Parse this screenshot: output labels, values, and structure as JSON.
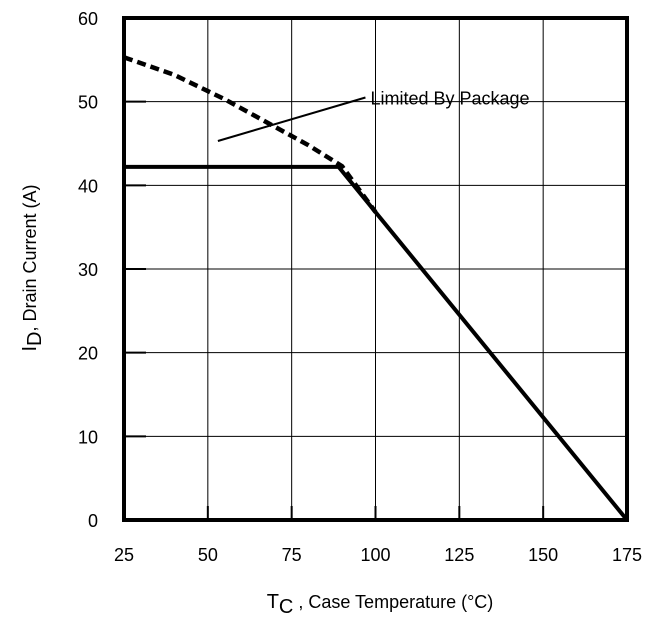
{
  "chart_data": {
    "type": "line",
    "xlim": [
      25,
      175
    ],
    "ylim": [
      0,
      60
    ],
    "x_ticks": [
      25,
      50,
      75,
      100,
      125,
      150,
      175
    ],
    "y_ticks": [
      0,
      10,
      20,
      30,
      40,
      50,
      60
    ],
    "grid": true,
    "xlabel": {
      "main": "T",
      "sub": "C",
      "rest": " , Case Temperature (°C)"
    },
    "ylabel": {
      "main": "I",
      "sub": "D",
      "rest": ",  Drain Current (A)"
    },
    "series": [
      {
        "style": "solid",
        "x": [
          25,
          89,
          175
        ],
        "y": [
          42.2,
          42.2,
          0
        ]
      },
      {
        "style": "dashed",
        "x": [
          25,
          40,
          55,
          70,
          80,
          90,
          100
        ],
        "y": [
          55.3,
          53.2,
          50.3,
          47.0,
          44.8,
          42.3,
          36.8
        ]
      }
    ],
    "annotations": [
      {
        "text": "Limited By Package",
        "pointer_from": [
          53,
          45.3
        ],
        "pointer_to": [
          97,
          50.5
        ],
        "text_x": 98.5,
        "text_y": 50.5
      }
    ]
  },
  "colors": {
    "line": "#000000",
    "grid": "#000000",
    "background": "#ffffff"
  }
}
